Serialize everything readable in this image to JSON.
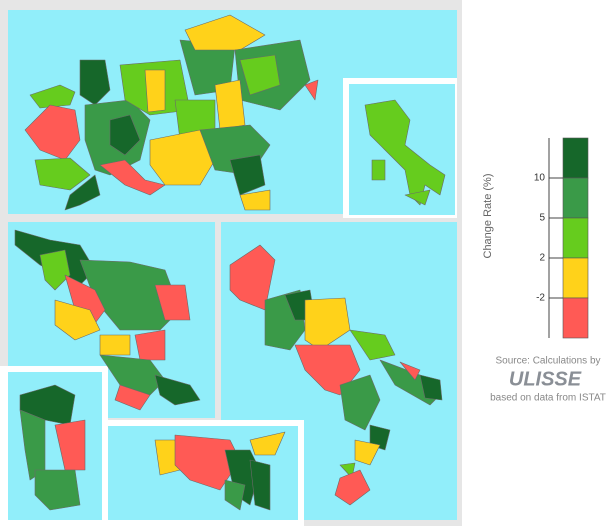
{
  "legend": {
    "title": "Change Rate (%)",
    "ticks": [
      10,
      5,
      2,
      -2
    ],
    "colors": [
      "#16672a",
      "#3a9a48",
      "#66cc1e",
      "#ffd21a",
      "#ff5a55"
    ]
  },
  "source": {
    "line1": "Source: Calculations by",
    "logo": "ULISSE",
    "line2": "based on data from ISTAT"
  }
}
